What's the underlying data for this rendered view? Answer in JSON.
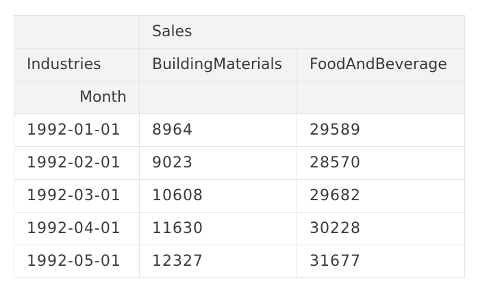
{
  "table": {
    "column_group_header": "Sales",
    "columns_level_name": "Industries",
    "columns": [
      "BuildingMaterials",
      "FoodAndBeverage"
    ],
    "index_name": "Month",
    "rows": [
      {
        "index": "1992-01-01",
        "values": [
          "8964",
          "29589"
        ]
      },
      {
        "index": "1992-02-01",
        "values": [
          "9023",
          "28570"
        ]
      },
      {
        "index": "1992-03-01",
        "values": [
          "10608",
          "29682"
        ]
      },
      {
        "index": "1992-04-01",
        "values": [
          "11630",
          "30228"
        ]
      },
      {
        "index": "1992-05-01",
        "values": [
          "12327",
          "31677"
        ]
      }
    ]
  }
}
